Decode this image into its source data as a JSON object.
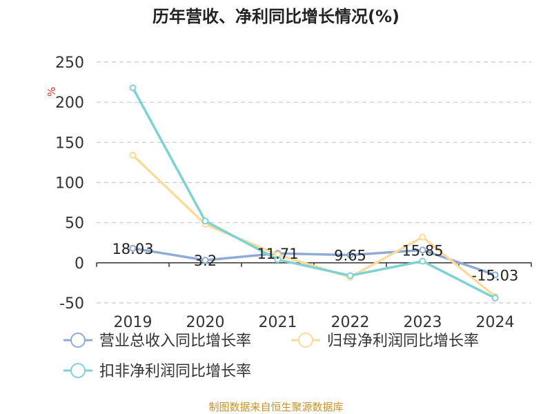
{
  "chart_data": {
    "type": "line",
    "title": "历年营收、净利同比增长情况(%)",
    "unit_label": "%",
    "categories": [
      "2019",
      "2020",
      "2021",
      "2022",
      "2023",
      "2024"
    ],
    "ylim": [
      -50,
      250
    ],
    "yticks": [
      "250",
      "200",
      "150",
      "100",
      "50",
      "0",
      "-50"
    ],
    "grid": true,
    "legend_position": "bottom",
    "series": [
      {
        "name": "营业总收入同比增长率",
        "color": "#8faad6",
        "values": [
          18.03,
          3.2,
          11.71,
          9.65,
          15.85,
          -15.03
        ],
        "labels": [
          "18.03",
          "3.2",
          "11.71",
          "9.65",
          "15.85",
          "-15.03"
        ]
      },
      {
        "name": "归母净利润同比增长率",
        "color": "#fadb9c",
        "values": [
          134,
          48,
          10,
          -18,
          32,
          -42
        ]
      },
      {
        "name": "扣非净利润同比增长率",
        "color": "#7fd2d2",
        "values": [
          218,
          52,
          4,
          -16,
          2,
          -44
        ]
      }
    ]
  },
  "source": "制图数据来自恒生聚源数据库"
}
